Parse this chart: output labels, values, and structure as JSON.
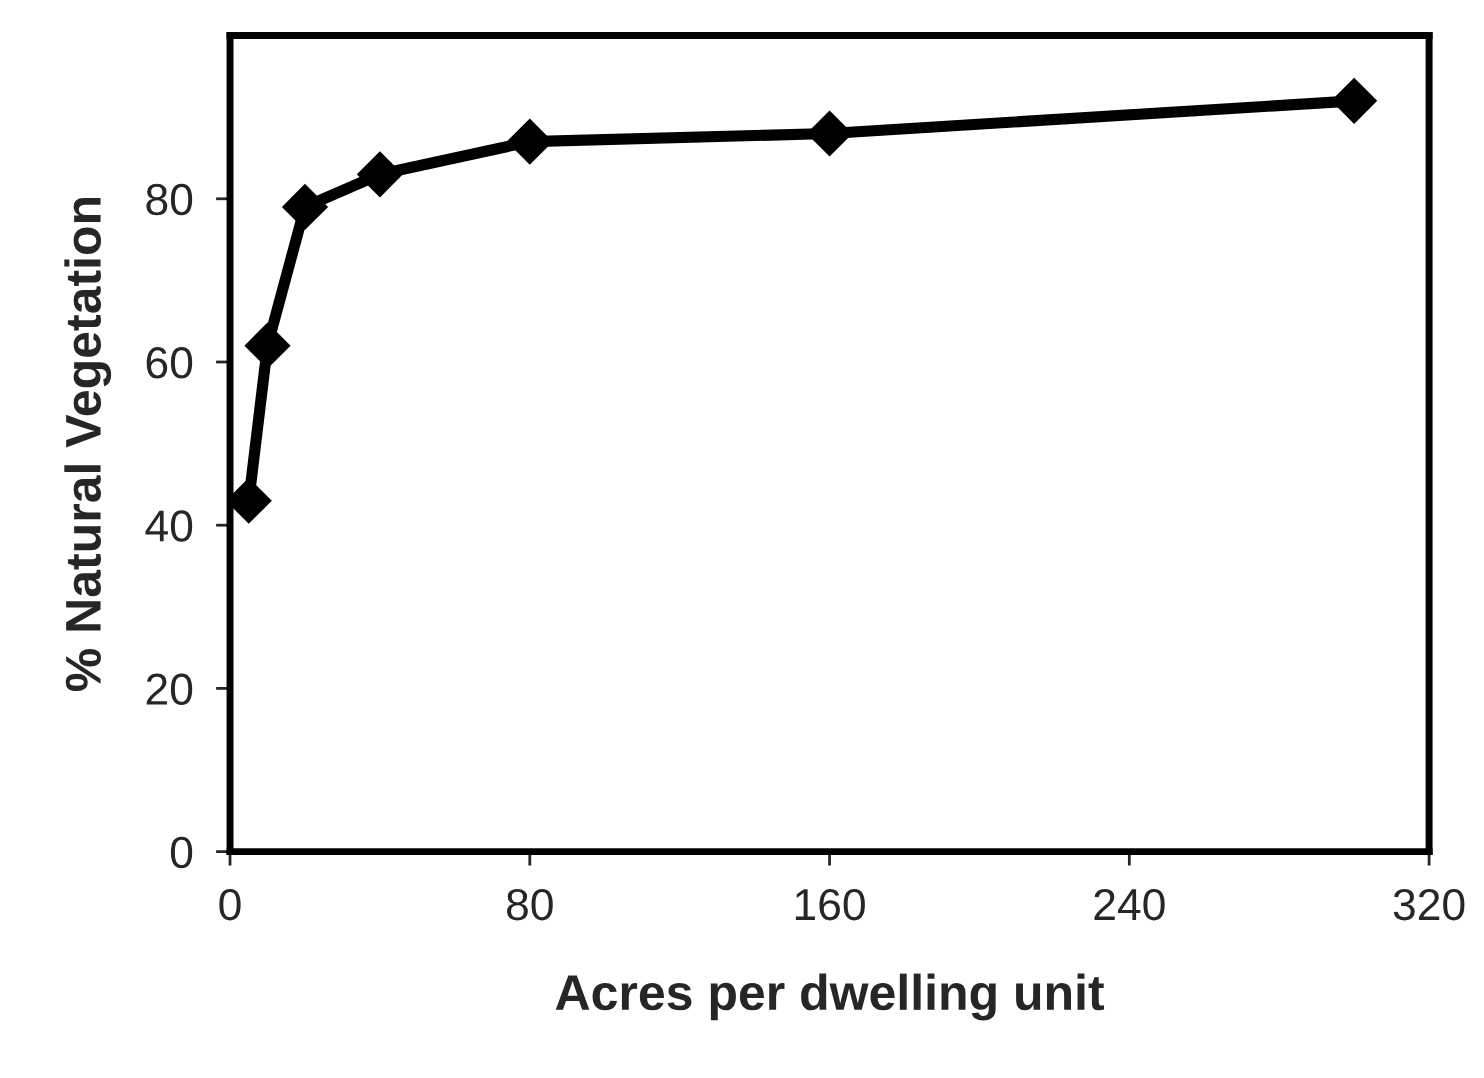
{
  "chart_data": {
    "type": "line",
    "xlabel": "Acres per dwelling unit",
    "ylabel": "% Natural Vegetation",
    "x": [
      5,
      10,
      20,
      40,
      80,
      160,
      300
    ],
    "series": [
      {
        "color": "#000000",
        "values": [
          43,
          62,
          79,
          83,
          87,
          88,
          92
        ]
      }
    ],
    "xlim": [
      0,
      320
    ],
    "xticks": [
      0,
      80,
      160,
      240,
      320
    ],
    "ylim": [
      0,
      100
    ],
    "yticks": [
      0,
      20,
      40,
      60,
      80
    ],
    "marker": "diamond",
    "line_style": "solid",
    "grid": false,
    "legend": false
  }
}
